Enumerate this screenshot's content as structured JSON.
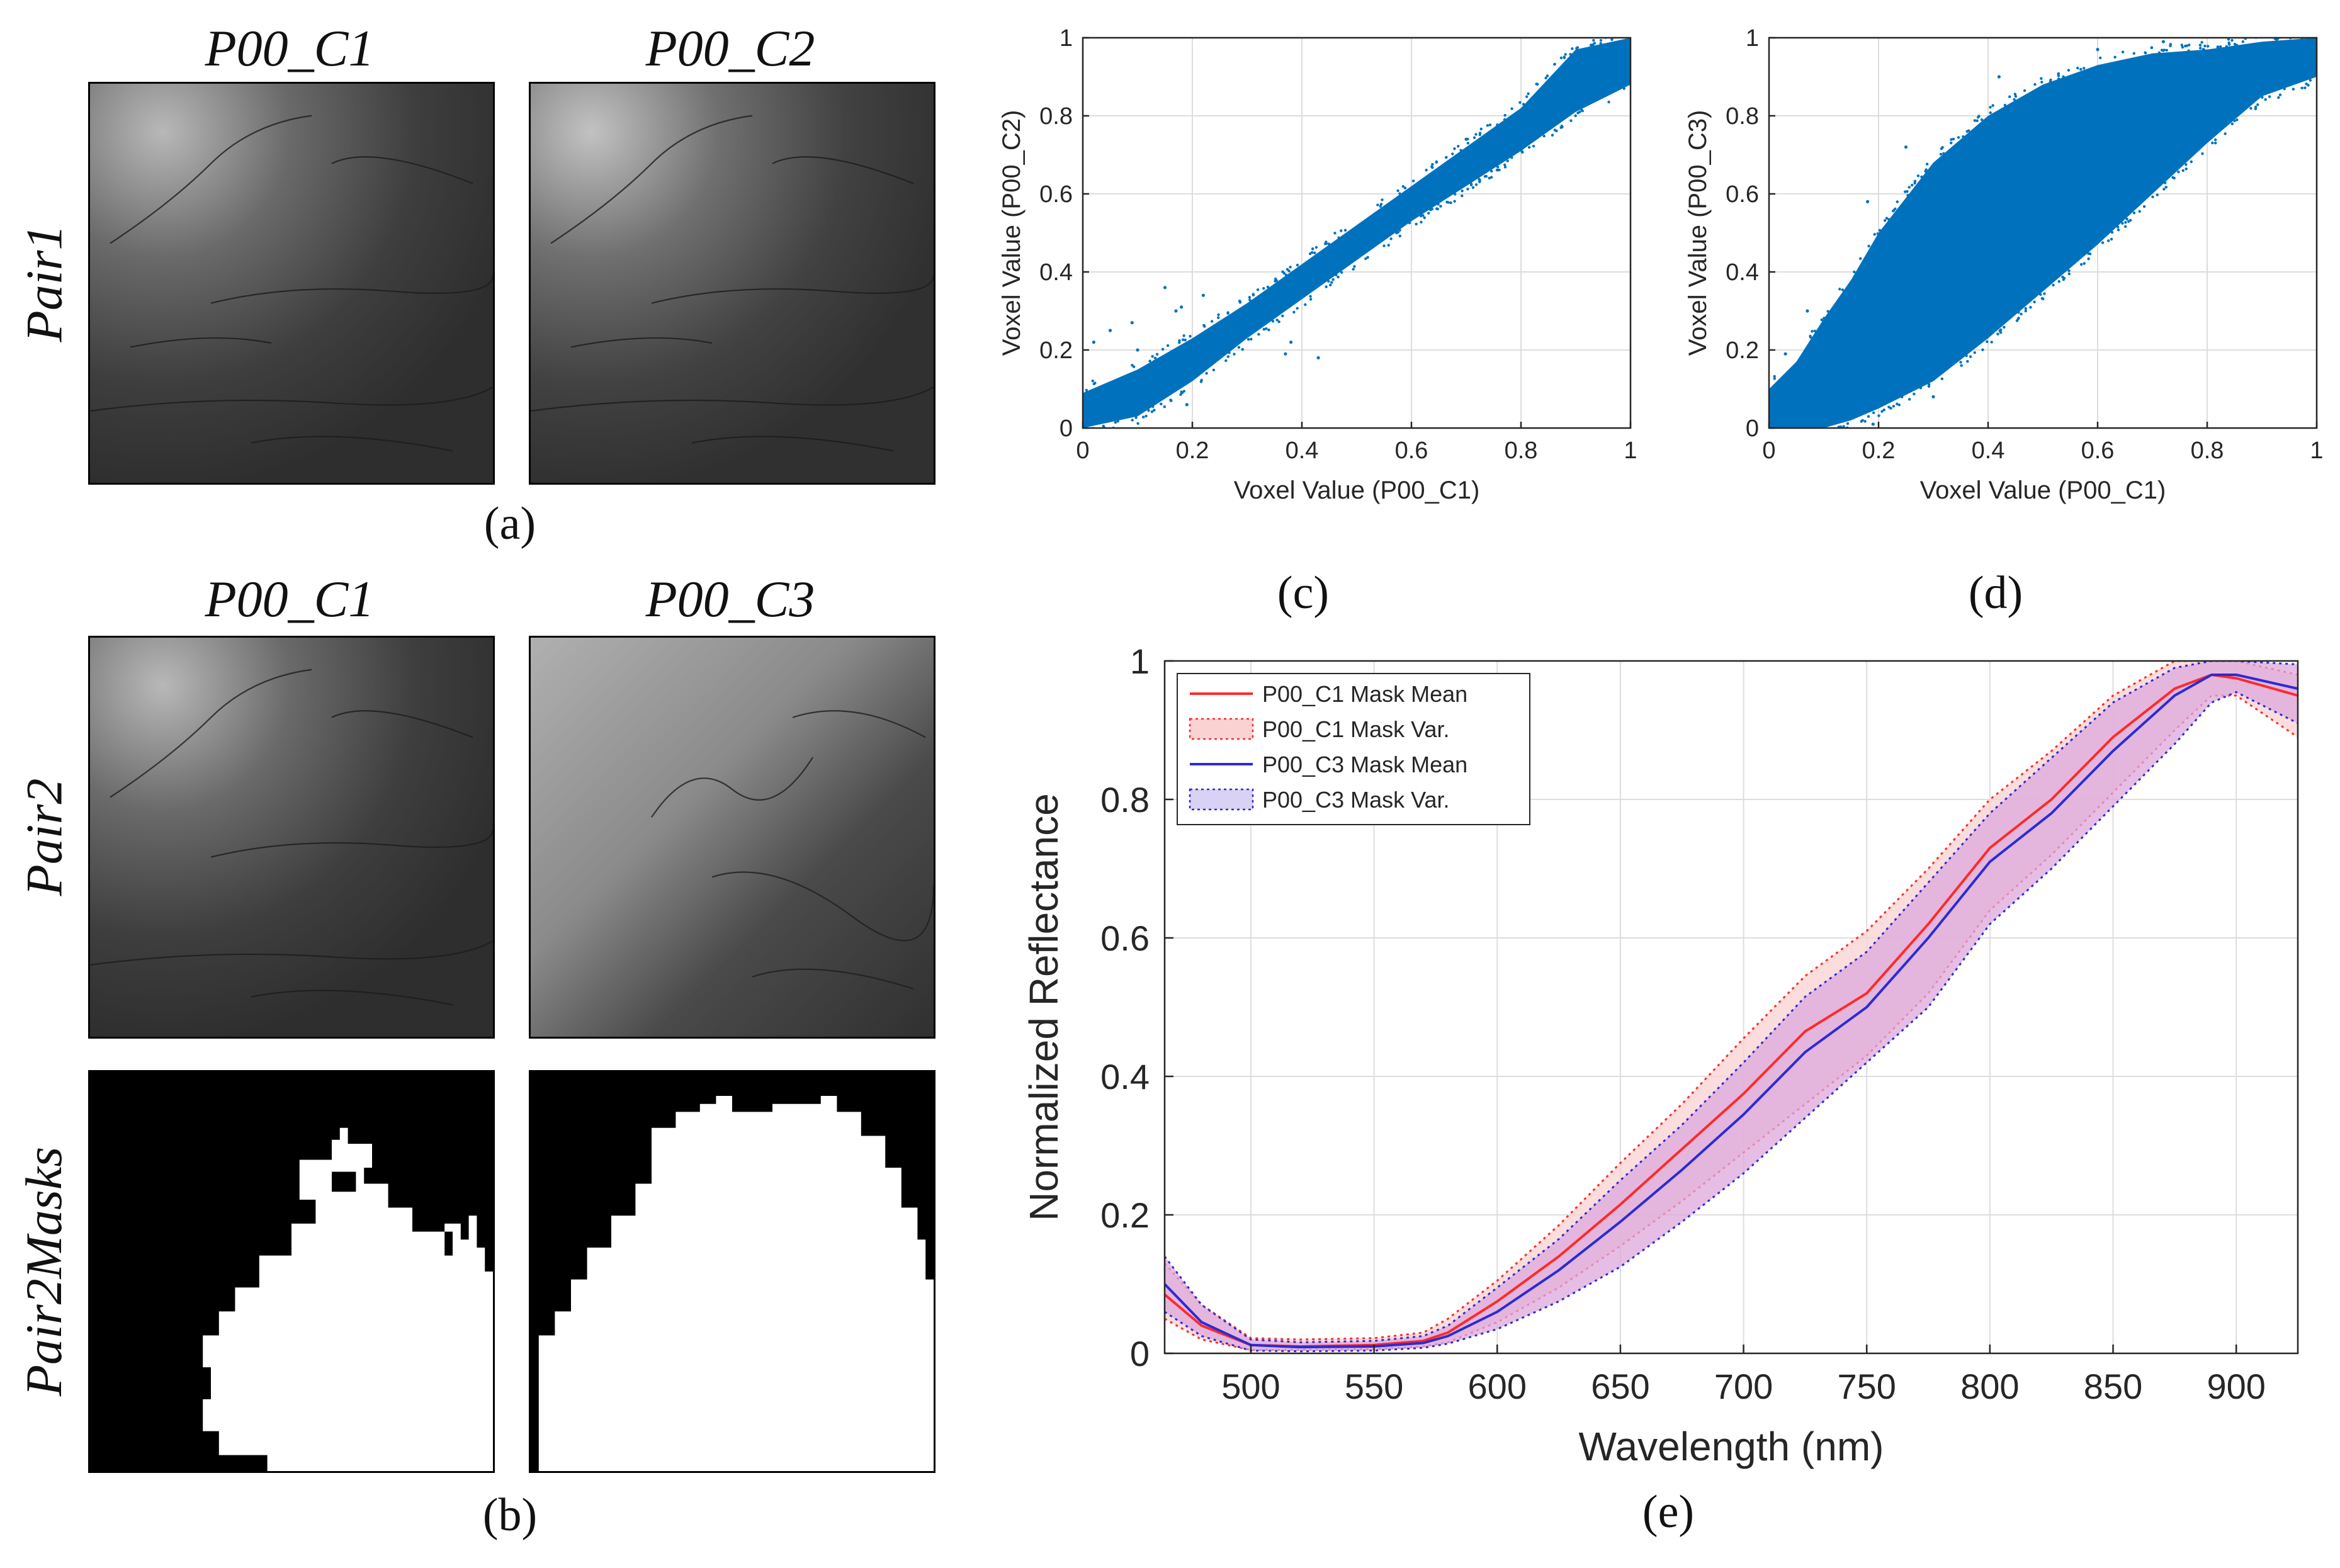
{
  "panel_a": {
    "col_titles": [
      "P00_C1",
      "P00_C2"
    ],
    "row_label": "Pair1",
    "caption": "(a)"
  },
  "panel_b": {
    "col_titles": [
      "P00_C1",
      "P00_C3"
    ],
    "row_labels": [
      "Pair2",
      "Pair2Masks"
    ],
    "caption": "(b)"
  },
  "panel_c": {
    "caption": "(c)"
  },
  "panel_d": {
    "caption": "(d)"
  },
  "panel_e": {
    "caption": "(e)"
  },
  "colors": {
    "scatter": "#0072BD",
    "c1_line": "#FF2A2A",
    "c1_fill": "#FAD2D2",
    "c3_line": "#2B2BD6",
    "c3_fill": "#D9D2F4",
    "overlap_fill": "#DDA8DC",
    "grid": "#DDDDDD"
  },
  "chart_data": [
    {
      "id": "c",
      "type": "scatter",
      "title": "",
      "xlabel": "Voxel Value (P00_C1)",
      "ylabel": "Voxel Value (P00_C2)",
      "xlim": [
        0,
        1
      ],
      "ylim": [
        0,
        1
      ],
      "xticks": [
        0,
        0.2,
        0.4,
        0.6,
        0.8,
        1
      ],
      "yticks": [
        0,
        0.2,
        0.4,
        0.6,
        0.8,
        1
      ],
      "xtick_labels": [
        "0",
        "0.2",
        "0.4",
        "0.6",
        "0.8",
        "1"
      ],
      "ytick_labels": [
        "0",
        "0.2",
        "0.4",
        "0.6",
        "0.8",
        "1"
      ],
      "grid": true,
      "envelope": {
        "x": [
          0,
          0.1,
          0.2,
          0.3,
          0.4,
          0.5,
          0.6,
          0.7,
          0.8,
          0.9,
          1.0
        ],
        "lower": [
          0,
          0.03,
          0.12,
          0.23,
          0.33,
          0.43,
          0.53,
          0.62,
          0.71,
          0.81,
          0.88
        ],
        "upper": [
          0.09,
          0.15,
          0.23,
          0.32,
          0.42,
          0.52,
          0.62,
          0.72,
          0.82,
          0.97,
          1.0
        ]
      },
      "outliers": [
        [
          0.02,
          0.22
        ],
        [
          0.05,
          0.25
        ],
        [
          0.09,
          0.27
        ],
        [
          0.1,
          0.2
        ],
        [
          0.13,
          0.17
        ],
        [
          0.15,
          0.36
        ],
        [
          0.17,
          0.3
        ],
        [
          0.18,
          0.31
        ],
        [
          0.19,
          0.06
        ],
        [
          0.22,
          0.34
        ],
        [
          0.38,
          0.22
        ],
        [
          0.43,
          0.18
        ],
        [
          0.37,
          0.19
        ],
        [
          0.63,
          0.64
        ],
        [
          0.7,
          0.74
        ],
        [
          0.79,
          0.72
        ]
      ]
    },
    {
      "id": "d",
      "type": "scatter",
      "title": "",
      "xlabel": "Voxel Value (P00_C1)",
      "ylabel": "Voxel Value (P00_C3)",
      "xlim": [
        0,
        1
      ],
      "ylim": [
        0,
        1
      ],
      "xticks": [
        0,
        0.2,
        0.4,
        0.6,
        0.8,
        1
      ],
      "yticks": [
        0,
        0.2,
        0.4,
        0.6,
        0.8,
        1
      ],
      "xtick_labels": [
        "0",
        "0.2",
        "0.4",
        "0.6",
        "0.8",
        "1"
      ],
      "ytick_labels": [
        "0",
        "0.2",
        "0.4",
        "0.6",
        "0.8",
        "1"
      ],
      "grid": true,
      "envelope": {
        "x": [
          0,
          0.05,
          0.1,
          0.15,
          0.2,
          0.3,
          0.4,
          0.5,
          0.6,
          0.7,
          0.8,
          0.9,
          1.0
        ],
        "lower": [
          0,
          0,
          0.0,
          0.02,
          0.05,
          0.12,
          0.23,
          0.35,
          0.47,
          0.6,
          0.73,
          0.85,
          0.9
        ],
        "upper": [
          0.1,
          0.17,
          0.28,
          0.38,
          0.5,
          0.68,
          0.8,
          0.88,
          0.93,
          0.96,
          0.97,
          0.99,
          1.0
        ]
      },
      "outliers": [
        [
          0.03,
          0.19
        ],
        [
          0.07,
          0.3
        ],
        [
          0.18,
          0.58
        ],
        [
          0.25,
          0.72
        ],
        [
          0.42,
          0.9
        ],
        [
          0.6,
          0.97
        ],
        [
          0.72,
          0.99
        ],
        [
          0.3,
          0.08
        ],
        [
          0.19,
          0.01
        ]
      ]
    },
    {
      "id": "e",
      "type": "line",
      "title": "",
      "xlabel": "Wavelength (nm)",
      "ylabel": "Normalized Reflectance",
      "xlim": [
        465,
        925
      ],
      "ylim": [
        0,
        1
      ],
      "xticks": [
        500,
        550,
        600,
        650,
        700,
        750,
        800,
        850,
        900
      ],
      "yticks": [
        0,
        0.2,
        0.4,
        0.6,
        0.8,
        1
      ],
      "xtick_labels": [
        "500",
        "550",
        "600",
        "650",
        "700",
        "750",
        "800",
        "850",
        "900"
      ],
      "ytick_labels": [
        "0",
        "0.2",
        "0.4",
        "0.6",
        "0.8",
        "1"
      ],
      "grid": true,
      "legend_position": "top-left",
      "x": [
        465,
        480,
        500,
        520,
        550,
        570,
        580,
        600,
        625,
        650,
        675,
        700,
        725,
        750,
        775,
        800,
        825,
        850,
        875,
        890,
        900,
        925
      ],
      "series": [
        {
          "name": "P00_C1 Mask Mean",
          "kind": "mean",
          "values": [
            0.085,
            0.04,
            0.012,
            0.01,
            0.012,
            0.018,
            0.03,
            0.075,
            0.14,
            0.215,
            0.295,
            0.375,
            0.465,
            0.52,
            0.62,
            0.73,
            0.8,
            0.89,
            0.96,
            0.98,
            0.975,
            0.95
          ]
        },
        {
          "name": "P00_C1 Mask Var.",
          "kind": "band",
          "lower": [
            0.05,
            0.02,
            0.005,
            0.005,
            0.006,
            0.01,
            0.016,
            0.045,
            0.095,
            0.155,
            0.22,
            0.29,
            0.36,
            0.43,
            0.52,
            0.64,
            0.72,
            0.81,
            0.9,
            0.95,
            0.95,
            0.89
          ],
          "upper": [
            0.13,
            0.07,
            0.022,
            0.02,
            0.022,
            0.03,
            0.05,
            0.105,
            0.185,
            0.275,
            0.36,
            0.455,
            0.545,
            0.61,
            0.7,
            0.8,
            0.87,
            0.95,
            1.0,
            1.0,
            1.0,
            0.98
          ]
        },
        {
          "name": "P00_C3 Mask Mean",
          "kind": "mean",
          "values": [
            0.1,
            0.045,
            0.012,
            0.009,
            0.01,
            0.015,
            0.025,
            0.06,
            0.12,
            0.19,
            0.265,
            0.345,
            0.435,
            0.5,
            0.6,
            0.71,
            0.78,
            0.87,
            0.95,
            0.98,
            0.98,
            0.96
          ]
        },
        {
          "name": "P00_C3 Mask Var.",
          "kind": "band",
          "lower": [
            0.06,
            0.025,
            0.004,
            0.003,
            0.004,
            0.008,
            0.014,
            0.035,
            0.075,
            0.125,
            0.19,
            0.26,
            0.34,
            0.42,
            0.5,
            0.62,
            0.7,
            0.79,
            0.88,
            0.94,
            0.955,
            0.91
          ],
          "upper": [
            0.14,
            0.07,
            0.02,
            0.016,
            0.018,
            0.025,
            0.04,
            0.095,
            0.165,
            0.25,
            0.33,
            0.42,
            0.515,
            0.58,
            0.68,
            0.78,
            0.86,
            0.94,
            0.99,
            1.0,
            1.0,
            0.995
          ]
        }
      ]
    }
  ]
}
